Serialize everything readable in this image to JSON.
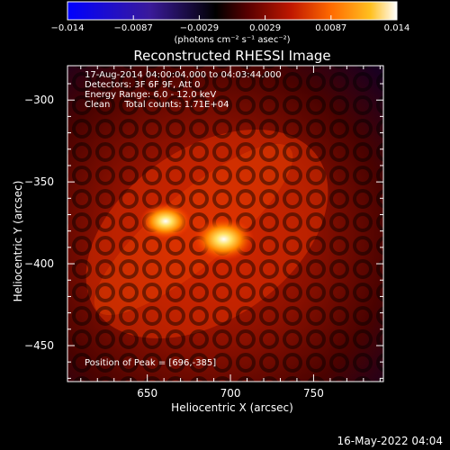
{
  "colorbar": {
    "ticks": [
      "−0.014",
      "−0.0087",
      "−0.0029",
      "0.0029",
      "0.0087",
      "0.014"
    ],
    "units": "(photons cm⁻² s⁻¹ asec⁻²)",
    "colors": [
      "#0000ff",
      "#3a1a9a",
      "#000000",
      "#5a0000",
      "#c01800",
      "#ff6a00",
      "#ffc020",
      "#ffffff"
    ]
  },
  "image": {
    "title": "Reconstructed RHESSI Image",
    "info_lines": [
      "17-Aug-2014 04:00:04.000 to 04:03:44.000",
      "Detectors: 3F 6F 9F, Att 0",
      "Energy Range: 6.0 - 12.0 keV",
      "Clean     Total counts: 1.71E+04"
    ],
    "peak_text": "Position of Peak = [696,-385]",
    "xlabel": "Heliocentric X (arcsec)",
    "ylabel": "Heliocentric Y (arcsec)",
    "xticks": [
      "650",
      "700",
      "750"
    ],
    "yticks": [
      "−300",
      "−350",
      "−400",
      "−450"
    ],
    "xtick_values": [
      650,
      700,
      750
    ],
    "ytick_values": [
      -300,
      -350,
      -400,
      -450
    ],
    "xlim": [
      602,
      792
    ],
    "ylim": [
      -472,
      -279
    ],
    "sources": [
      {
        "x": 696,
        "y": -385,
        "level": 1.0
      },
      {
        "x": 661,
        "y": -374,
        "level": 0.85
      }
    ]
  },
  "footer": {
    "timestamp": "16-May-2022 04:04"
  }
}
